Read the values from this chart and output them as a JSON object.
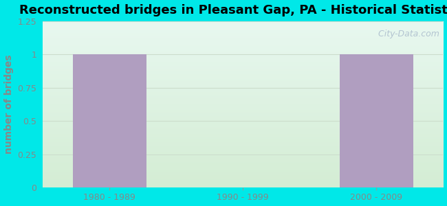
{
  "title": "Reconstructed bridges in Pleasant Gap, PA - Historical Statistics",
  "categories": [
    "1980 - 1989",
    "1990 - 1999",
    "2000 - 2009"
  ],
  "values": [
    1,
    0,
    1
  ],
  "bar_color": "#b09ec0",
  "ylabel": "number of bridges",
  "ylim": [
    0,
    1.25
  ],
  "yticks": [
    0,
    0.25,
    0.5,
    0.75,
    1.0,
    1.25
  ],
  "background_color": "#00e8e8",
  "plot_bg_top": "#e8f4f0",
  "plot_bg_bottom": "#ddf0dd",
  "title_fontsize": 13,
  "ylabel_fontsize": 10,
  "tick_fontsize": 9,
  "bar_width": 0.55,
  "watermark": "  City-Data.com",
  "ylabel_color": "#888888",
  "tick_color": "#888888",
  "grid_color": "#ccddcc",
  "title_color": "#000000"
}
